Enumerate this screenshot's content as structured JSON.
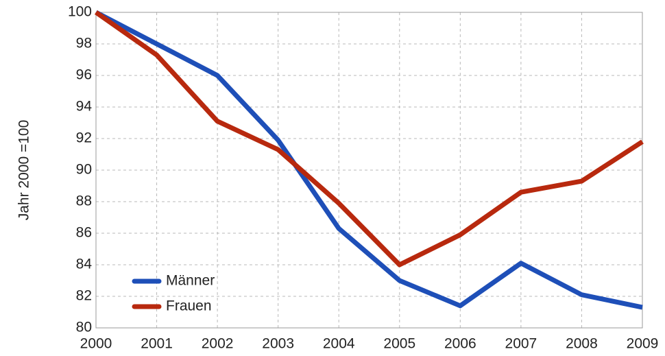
{
  "chart_data": {
    "type": "line",
    "ylabel": "Jahr 2000 =100",
    "categories": [
      "2000",
      "2001",
      "2002",
      "2003",
      "2004",
      "2005",
      "2006",
      "2007",
      "2008",
      "2009"
    ],
    "series": [
      {
        "name": "Männer",
        "color": "#1e4fb8",
        "values": [
          100,
          98.0,
          96.0,
          91.9,
          86.3,
          83.0,
          81.4,
          84.1,
          82.1,
          81.3
        ]
      },
      {
        "name": "Frauen",
        "color": "#b8290e",
        "values": [
          100,
          97.3,
          93.1,
          91.3,
          87.9,
          84.0,
          85.9,
          88.6,
          89.3,
          91.8
        ]
      }
    ],
    "ylim": [
      80,
      100
    ],
    "yticks": [
      80,
      82,
      84,
      86,
      88,
      90,
      92,
      94,
      96,
      98,
      100
    ],
    "grid": true,
    "legend": "lower left"
  }
}
